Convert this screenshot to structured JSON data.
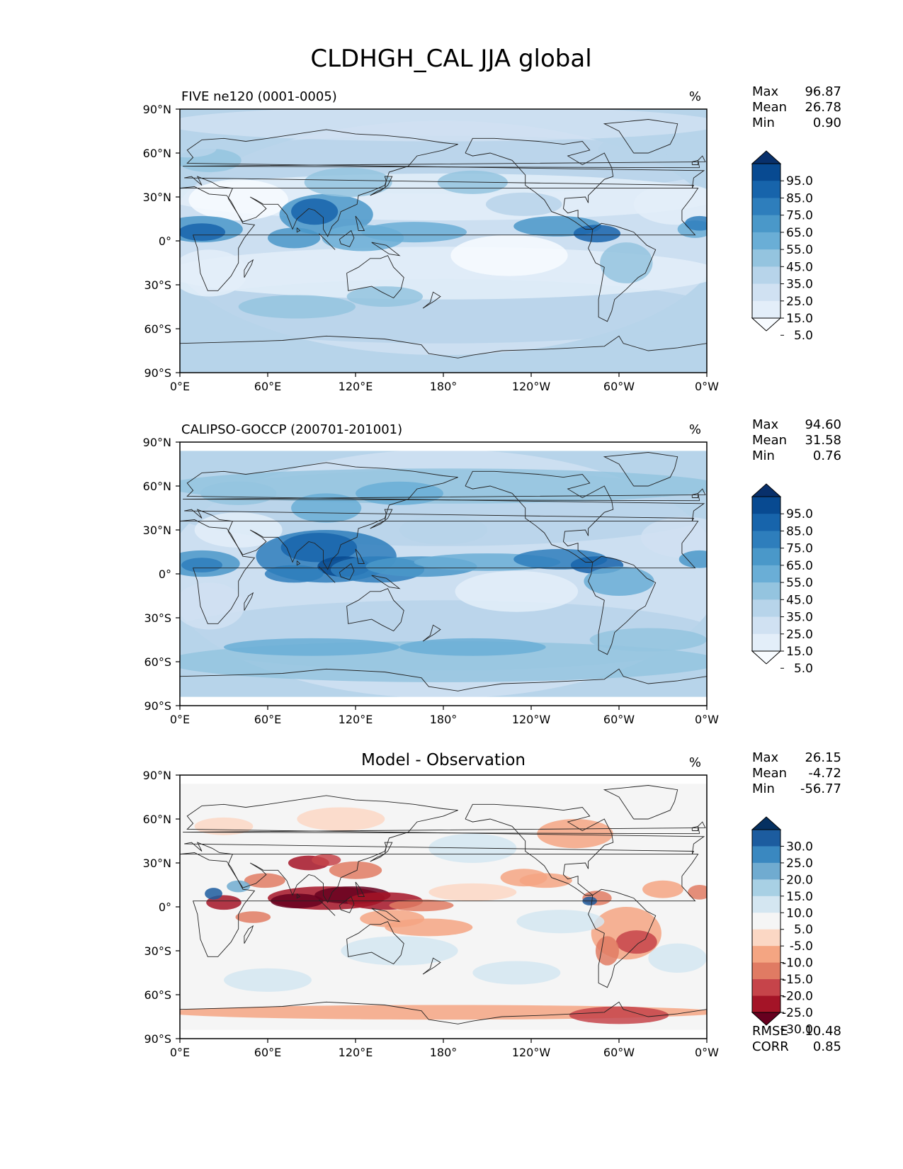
{
  "chart_data": {
    "type": "heatmap",
    "title": "CLDHGH_CAL JJA global",
    "projection": "PlateCarree",
    "x_ticks": [
      "0°E",
      "60°E",
      "120°E",
      "180°",
      "120°W",
      "60°W",
      "0°W"
    ],
    "y_ticks": [
      "90°N",
      "60°N",
      "30°N",
      "0°",
      "30°S",
      "60°S",
      "90°S"
    ],
    "xlim": [
      0,
      360
    ],
    "ylim": [
      -90,
      90
    ],
    "panels": [
      {
        "id": "model",
        "title_left": "FIVE ne120 (0001-0005)",
        "title_center": "",
        "units": "%",
        "stats": [
          {
            "label": "Max",
            "value": "96.87"
          },
          {
            "label": "Mean",
            "value": "26.78"
          },
          {
            "label": "Min",
            "value": "0.90"
          }
        ],
        "colormap": "Blues",
        "colorbar_ticks": [
          "95.0",
          "85.0",
          "75.0",
          "65.0",
          "55.0",
          "45.0",
          "35.0",
          "25.0",
          "15.0",
          "5.0"
        ],
        "colorbar_colors": [
          "#08306b",
          "#084a91",
          "#1764ab",
          "#2e7ebc",
          "#4a98c9",
          "#6aaed6",
          "#94c4df",
          "#b7d4ea",
          "#d0e1f2",
          "#e3eef9",
          "#f7fbff"
        ],
        "mean": 26.78
      },
      {
        "id": "obs",
        "title_left": "CALIPSO-GOCCP (200701-201001)",
        "title_center": "",
        "units": "%",
        "stats": [
          {
            "label": "Max",
            "value": "94.60"
          },
          {
            "label": "Mean",
            "value": "31.58"
          },
          {
            "label": "Min",
            "value": "0.76"
          }
        ],
        "colormap": "Blues",
        "colorbar_ticks": [
          "95.0",
          "85.0",
          "75.0",
          "65.0",
          "55.0",
          "45.0",
          "35.0",
          "25.0",
          "15.0",
          "5.0"
        ],
        "colorbar_colors": [
          "#08306b",
          "#084a91",
          "#1764ab",
          "#2e7ebc",
          "#4a98c9",
          "#6aaed6",
          "#94c4df",
          "#b7d4ea",
          "#d0e1f2",
          "#e3eef9",
          "#f7fbff"
        ],
        "mean": 31.58
      },
      {
        "id": "diff",
        "title_left": "",
        "title_center": "Model - Observation",
        "units": "%",
        "stats": [
          {
            "label": "Max",
            "value": "26.15"
          },
          {
            "label": "Mean",
            "value": "-4.72"
          },
          {
            "label": "Min",
            "value": "-56.77"
          }
        ],
        "extra_stats": [
          {
            "label": "RMSE",
            "value": "10.48"
          },
          {
            "label": "CORR",
            "value": "0.85"
          }
        ],
        "colormap": "RdBu",
        "colorbar_ticks": [
          "30.0",
          "25.0",
          "20.0",
          "15.0",
          "10.0",
          "5.0",
          "-5.0",
          "-10.0",
          "-15.0",
          "-20.0",
          "-25.0",
          "-30.0"
        ],
        "colorbar_colors": [
          "#053061",
          "#1c5c9f",
          "#3a88c0",
          "#70abd0",
          "#a8d0e4",
          "#d4e6f1",
          "#f5f5f5",
          "#fbd7c4",
          "#f4a582",
          "#e07b63",
          "#c6444a",
          "#a41427",
          "#67001f"
        ],
        "mean": -4.72
      }
    ]
  }
}
